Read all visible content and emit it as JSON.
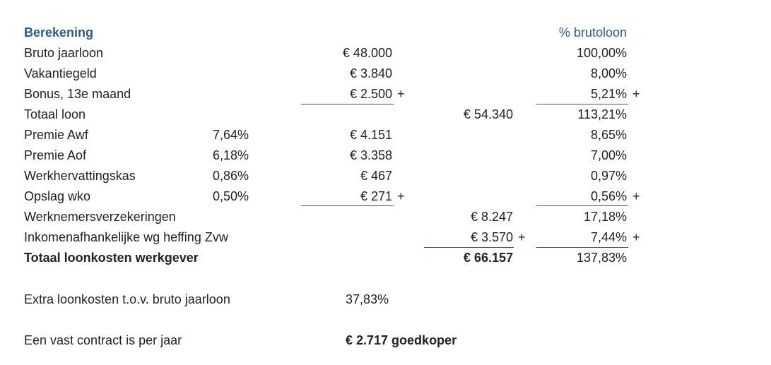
{
  "header": {
    "title": "Berekening",
    "percent_heading": "% brutoloon"
  },
  "rows": [
    {
      "label": "Bruto jaarloon",
      "amount": "€ 48.000",
      "percent": "100,00%"
    },
    {
      "label": "Vakantiegeld",
      "amount": "€ 3.840",
      "percent": "8,00%"
    },
    {
      "label": "Bonus, 13e maand",
      "amount": "€ 2.500",
      "amount_sign": "+",
      "percent": "5,21%",
      "percent_sign": "+"
    },
    {
      "label": "Totaal loon",
      "total": "€ 54.340",
      "percent": "113,21%"
    },
    {
      "label": "Premie Awf",
      "rate": "7,64%",
      "amount": "€ 4.151",
      "percent": "8,65%"
    },
    {
      "label": "Premie Aof",
      "rate": "6,18%",
      "amount": "€ 3.358",
      "percent": "7,00%"
    },
    {
      "label": "Werkhervattingskas",
      "rate": "0,86%",
      "amount": "€ 467",
      "percent": "0,97%"
    },
    {
      "label": "Opslag wko",
      "rate": "0,50%",
      "amount": "€ 271",
      "amount_sign": "+",
      "percent": "0,56%",
      "percent_sign": "+"
    },
    {
      "label": "Werknemersverzekeringen",
      "total": "€ 8.247",
      "percent": "17,18%"
    },
    {
      "label": "Inkomenafhankelijke wg heffing Zvw",
      "total": "€ 3.570",
      "total_sign": "+",
      "percent": "7,44%",
      "percent_sign": "+"
    }
  ],
  "total_row": {
    "label": "Totaal loonkosten werkgever",
    "total": "€ 66.157",
    "percent": "137,83%"
  },
  "notes": [
    {
      "label": "Extra loonkosten t.o.v. bruto jaarloon",
      "value": "37,83%"
    },
    {
      "label": "Een vast contract is per jaar",
      "value": "€ 2.717 goedkoper"
    }
  ]
}
